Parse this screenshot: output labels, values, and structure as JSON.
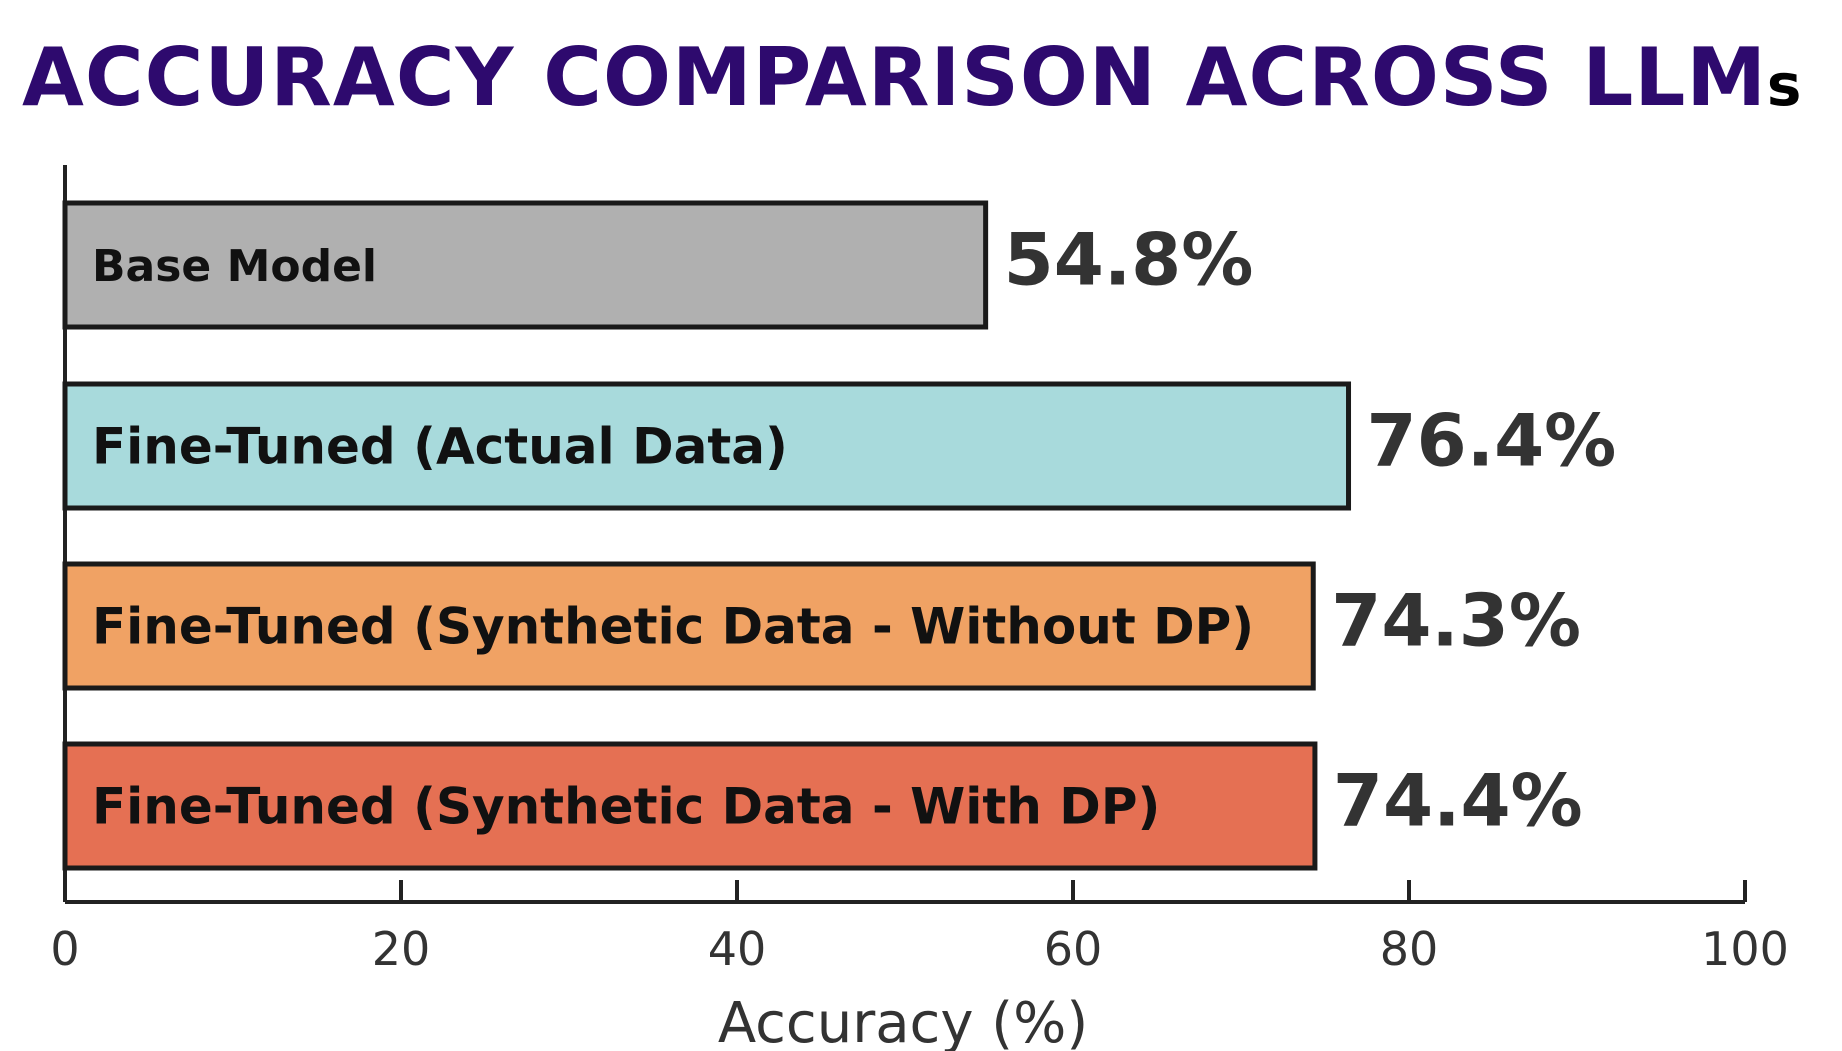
{
  "title": {
    "main": "ACCURACY COMPARISON ACROSS LLM",
    "suffix": "s"
  },
  "chart_data": {
    "type": "bar",
    "orientation": "horizontal",
    "categories": [
      "Base Model",
      "Fine-Tuned (Actual Data)",
      "Fine-Tuned (Synthetic Data - Without DP)",
      "Fine-Tuned (Synthetic Data - With DP)"
    ],
    "values": [
      54.8,
      76.4,
      74.3,
      74.4
    ],
    "value_labels": [
      "54.8%",
      "76.4%",
      "74.3%",
      "74.4%"
    ],
    "colors": [
      "#b0b0b0",
      "#a8dadc",
      "#f0a264",
      "#e57053"
    ],
    "xlabel": "Accuracy (%)",
    "xlim": [
      0,
      100
    ],
    "xticks": [
      0,
      20,
      40,
      60,
      80,
      100
    ],
    "grid": false,
    "legend": "none"
  }
}
